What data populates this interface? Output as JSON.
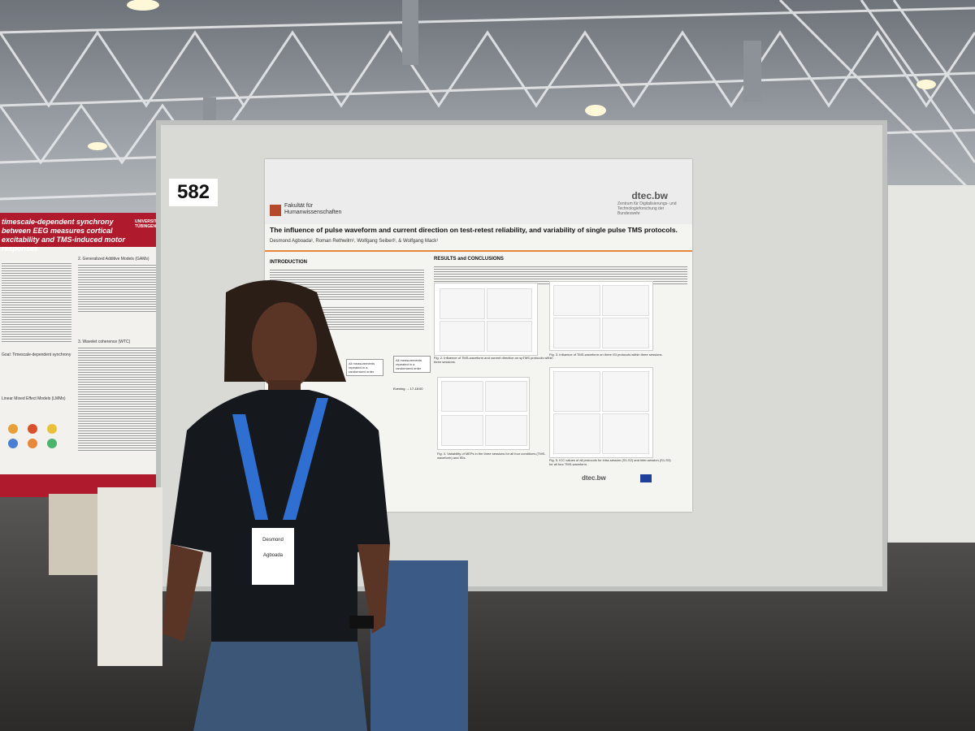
{
  "booth_number": "582",
  "main_poster": {
    "faculty_line1": "Fakultät für",
    "faculty_line2": "Humanwissenschaften",
    "sponsor_logo": "dtec.bw",
    "sponsor_subtitle": "Zentrum für Digitalisierungs- und Technologieforschung der Bundeswehr",
    "title": "The influence of pulse waveform and current direction on test-retest reliability, and variability of single pulse TMS protocols.",
    "authors": "Desmond Agboada¹, Roman Rethwilm¹, Wolfgang Seiberl¹, & Wolfgang Mack¹",
    "section_intro": "INTRODUCTION",
    "section_results": "RESULTS and CONCLUSIONS",
    "box_left": "All measurements repeated in a randomized order",
    "box_right": "All measurements repeated in a randomized order",
    "evening_label": "Evening → 17-18:00",
    "fig2_caption": "Fig. 2. Influence of TMS-waveform and current direction on spTMS protocols within three sessions.",
    "fig3_caption": "Fig. 3. Influence of TMS-waveform on three ISI protocols within three sessions.",
    "fig4_caption": "Fig. 4. Variability of MEPs in the three sessions for all four conditions (TMS-waveform) and ISIs.",
    "fig5_caption": "Fig. 5. ICC values of all protocols for intra-session (S1-S2) and inter-session (S1-S3) for all four TMS-waveform.",
    "footer_logo": "dtec.bw"
  },
  "left_poster": {
    "title": "timescale-dependent synchrony between EEG measures cortical excitability and TMS-induced motor responses",
    "university": "UNIVERSITÄT TÜBINGEN",
    "section_gams": "2. Generalized Additive Models (GAMs)",
    "section_wtc": "3. Wavelet coherence (WTC)",
    "section_goal": "Goal: Timescale-dependent synchrony",
    "section_lmm": "Linear Mixed Effect Models (LMMs)"
  },
  "badge": {
    "name_line1": "Desmond",
    "name_line2": "Agboada"
  },
  "colors": {
    "poster_red": "#b01a2d",
    "accent_orange": "#e8873a",
    "shirt": "#15181c",
    "lanyard": "#2f6fd1"
  }
}
